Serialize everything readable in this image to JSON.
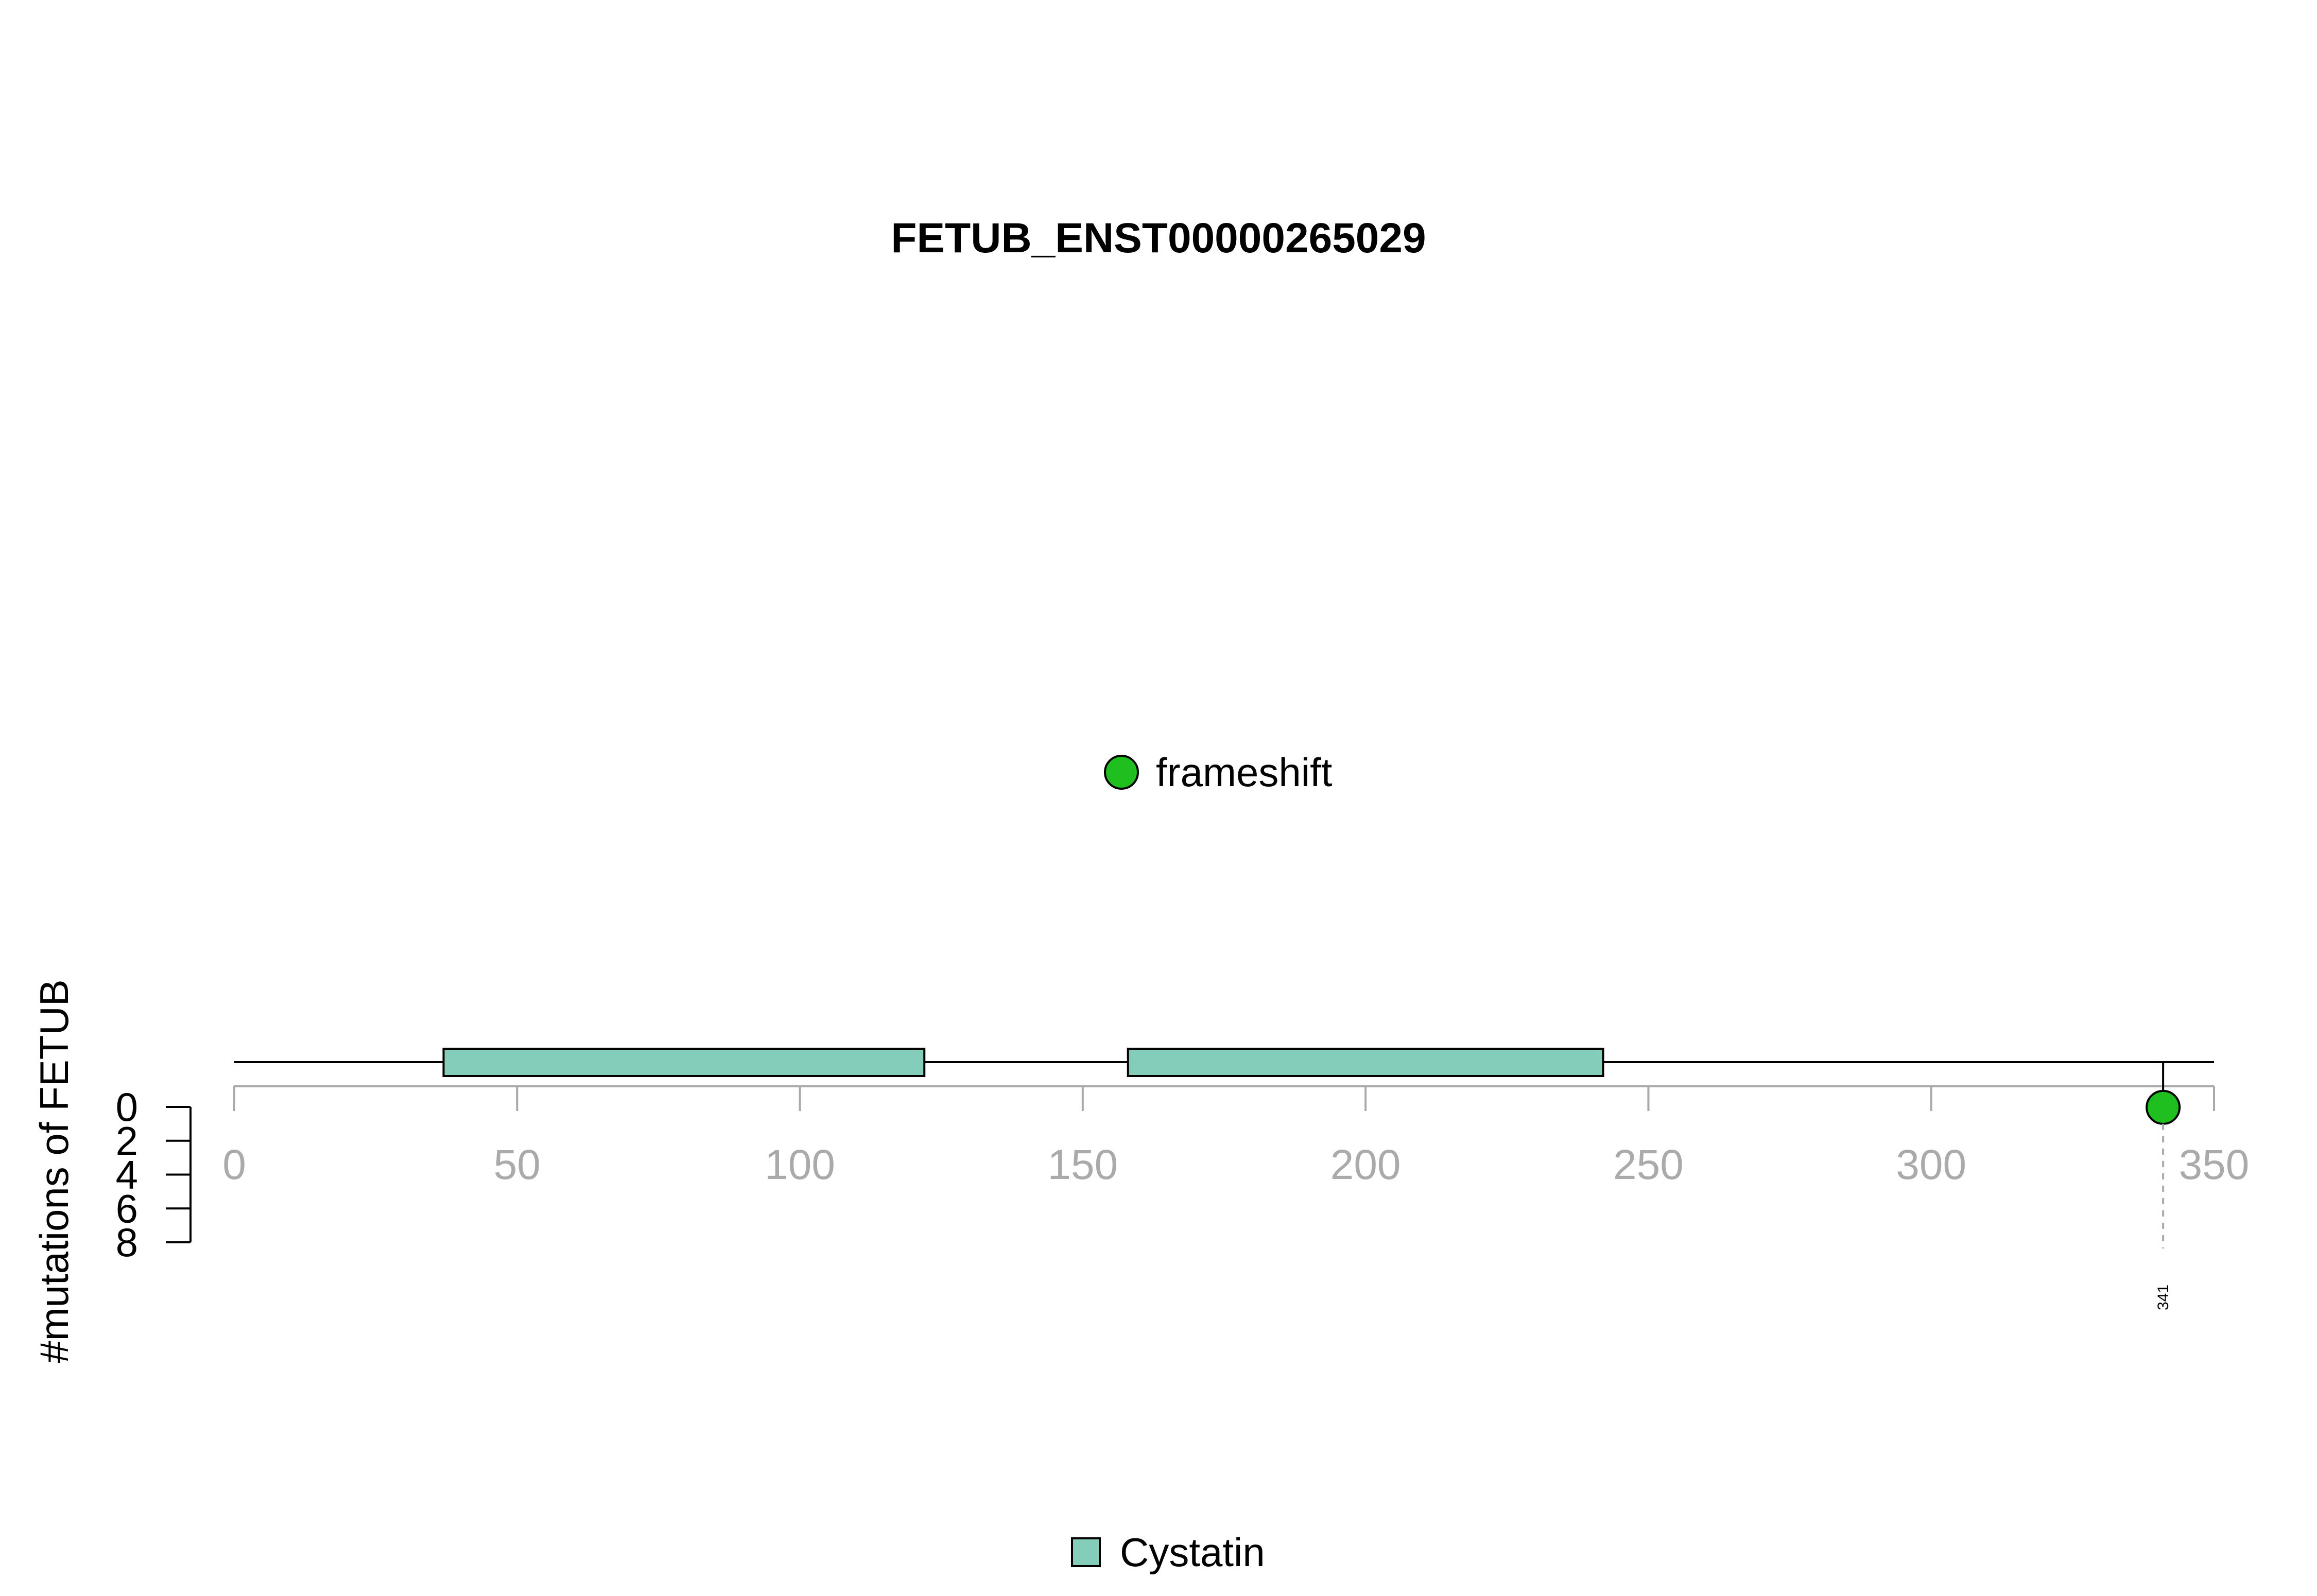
{
  "chart_data": {
    "type": "lollipop",
    "title": "FETUB_ENST00000265029",
    "ylabel": "#mutations of FETUB",
    "xlim": [
      0,
      350
    ],
    "ylim": [
      0,
      8
    ],
    "x_ticks": [
      0,
      50,
      100,
      150,
      200,
      250,
      300,
      350
    ],
    "y_ticks": [
      0,
      2,
      4,
      6,
      8
    ],
    "protein_length": 350,
    "domains": [
      {
        "name": "Cystatin",
        "start": 37,
        "end": 122
      },
      {
        "name": "Cystatin",
        "start": 158,
        "end": 242
      }
    ],
    "mutations": [
      {
        "position": 341,
        "count": 1,
        "type": "frameshift",
        "label": "341"
      }
    ],
    "mutation_legend": [
      {
        "label": "frameshift",
        "color": "#1FBF1F"
      }
    ],
    "domain_legend": [
      {
        "label": "Cystatin",
        "color": "#84CDBA"
      }
    ],
    "colors": {
      "frameshift": "#1FBF1F",
      "domain": "#84CDBA",
      "axis": "#AAAAAA"
    }
  }
}
